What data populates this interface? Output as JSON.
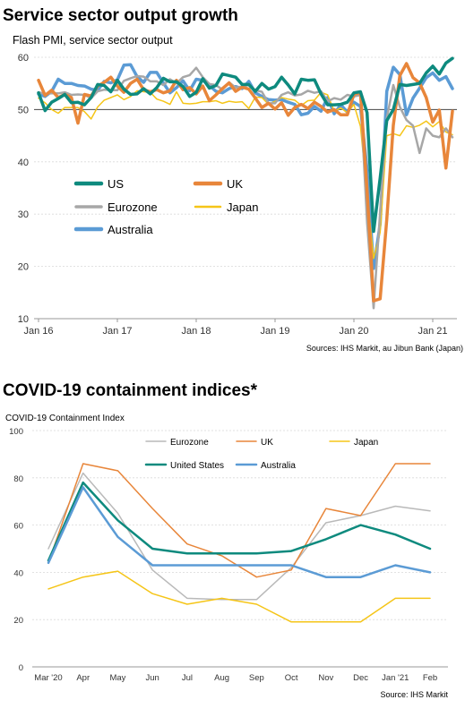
{
  "chart_data": [
    {
      "type": "line",
      "title": "Service sector output growth",
      "subtitle": "Flash PMI, service sector output",
      "source": "Sources: IHS Markit, au Jibun Bank (Japan)",
      "ylim": [
        10,
        60
      ],
      "yticks": [
        "10",
        "20",
        "30",
        "40",
        "50",
        "60"
      ],
      "xticks": [
        "Jan 16",
        "Jan 17",
        "Jan 18",
        "Jan 19",
        "Jan 20",
        "Jan 21"
      ],
      "x_start": "2016-01",
      "reference_line": 50,
      "grid": true,
      "legend_position": "bottom-left",
      "series": [
        {
          "name": "US",
          "color": "#0e8a7e",
          "width": 3.5,
          "values": [
            53.2,
            49.8,
            51.4,
            52.1,
            52.9,
            51.3,
            51.4,
            50.9,
            52.3,
            54.8,
            54.6,
            53.4,
            55.6,
            53.9,
            52.9,
            53.0,
            54.0,
            53.0,
            54.2,
            56.0,
            55.3,
            55.3,
            54.4,
            52.5,
            53.3,
            55.9,
            54.1,
            54.6,
            56.8,
            56.5,
            56.2,
            54.8,
            54.8,
            53.5,
            55.0,
            53.9,
            54.4,
            56.2,
            54.7,
            53.0,
            55.8,
            55.6,
            55.7,
            53.0,
            50.9,
            50.9,
            51.0,
            51.4,
            53.2,
            53.4,
            49.4,
            26.7,
            36.9,
            47.9,
            50.0,
            54.8,
            54.6,
            54.8,
            55.0,
            57.0,
            58.3,
            56.8,
            58.9,
            59.8
          ]
        },
        {
          "name": "UK",
          "color": "#e8863a",
          "width": 3.5,
          "values": [
            55.6,
            52.7,
            53.7,
            52.3,
            52.9,
            52.3,
            47.4,
            52.9,
            52.6,
            54.5,
            55.2,
            56.2,
            54.5,
            53.3,
            55.0,
            55.8,
            53.8,
            53.4,
            53.8,
            53.2,
            53.6,
            55.6,
            53.8,
            54.2,
            53.0,
            54.5,
            51.7,
            52.8,
            54.0,
            55.1,
            53.5,
            54.3,
            53.9,
            52.2,
            50.4,
            51.2,
            50.1,
            51.3,
            48.9,
            50.4,
            51.0,
            50.2,
            51.4,
            50.6,
            49.5,
            50.0,
            49.0,
            49.0,
            52.9,
            53.3,
            34.5,
            13.4,
            13.8,
            29.0,
            47.0,
            56.5,
            58.8,
            56.1,
            55.1,
            52.3,
            47.6,
            49.9,
            38.8,
            49.7
          ]
        },
        {
          "name": "Eurozone",
          "color": "#a7a7a7",
          "width": 2.5,
          "values": [
            53.3,
            53.0,
            53.1,
            53.1,
            53.3,
            52.8,
            52.9,
            52.8,
            52.2,
            53.5,
            53.8,
            53.7,
            53.7,
            55.5,
            56.0,
            56.4,
            56.3,
            55.4,
            55.4,
            54.7,
            55.8,
            55.0,
            56.2,
            56.6,
            58.0,
            56.2,
            54.9,
            54.7,
            53.8,
            55.2,
            54.2,
            54.4,
            54.7,
            53.7,
            53.4,
            51.2,
            51.2,
            52.8,
            53.3,
            52.7,
            52.9,
            53.6,
            53.2,
            53.5,
            51.6,
            52.2,
            51.9,
            52.8,
            52.5,
            52.8,
            28.4,
            12.0,
            30.5,
            48.3,
            54.7,
            50.5,
            48.0,
            46.9,
            41.7,
            46.4,
            45.0,
            44.7,
            46.4,
            44.7
          ]
        },
        {
          "name": "Japan",
          "color": "#f5c518",
          "width": 1.5,
          "values": [
            52.2,
            51.3,
            50.0,
            49.3,
            50.4,
            50.4,
            50.4,
            49.6,
            48.2,
            50.5,
            51.8,
            52.3,
            52.8,
            51.9,
            52.5,
            53.6,
            53.4,
            53.3,
            52.0,
            51.6,
            51.0,
            53.4,
            51.2,
            51.1,
            51.2,
            51.5,
            51.5,
            51.7,
            51.2,
            51.6,
            51.4,
            51.5,
            50.2,
            52.4,
            52.3,
            51.0,
            51.6,
            52.3,
            52.0,
            51.8,
            50.8,
            51.7,
            51.8,
            53.3,
            52.8,
            49.7,
            50.3,
            49.4,
            51.0,
            46.8,
            33.8,
            21.5,
            26.5,
            45.0,
            45.4,
            45.0,
            46.9,
            46.6,
            47.0,
            47.8,
            46.7,
            47.7,
            45.7,
            45.2
          ]
        },
        {
          "name": "Australia",
          "color": "#5b9bd5",
          "width": 3.5,
          "values": [
            53.0,
            52.5,
            53.5,
            55.8,
            55.0,
            55.0,
            54.6,
            54.5,
            53.9,
            53.7,
            55.4,
            55.1,
            55.7,
            58.5,
            58.6,
            56.3,
            55.2,
            57.1,
            57.1,
            55.1,
            53.2,
            54.2,
            55.5,
            53.6,
            55.8,
            55.6,
            54.6,
            53.5,
            53.2,
            54.0,
            54.4,
            54.0,
            55.4,
            53.2,
            52.5,
            51.9,
            51.8,
            51.9,
            51.4,
            51.0,
            49.0,
            49.3,
            50.6,
            49.7,
            52.3,
            49.2,
            50.9,
            49.5,
            51.4,
            50.6,
            38.5,
            19.6,
            28.1,
            53.5,
            58.1,
            56.7,
            49.0,
            52.2,
            54.1,
            56.1,
            57.0,
            55.6,
            56.3,
            54.0
          ]
        }
      ]
    },
    {
      "type": "line",
      "title": "COVID-19 containment indices*",
      "subtitle": "COVID-19 Containment  Index",
      "source": "Source: IHS Markit",
      "ylim": [
        0,
        100
      ],
      "yticks": [
        "0",
        "20",
        "40",
        "60",
        "80",
        "100"
      ],
      "categories": [
        "Mar '20",
        "Apr",
        "May",
        "Jun",
        "Jul",
        "Aug",
        "Sep",
        "Oct",
        "Nov",
        "Dec",
        "Jan '21",
        "Feb"
      ],
      "grid": true,
      "legend_position": "top",
      "series": [
        {
          "name": "Eurozone",
          "color": "#b9b9b9",
          "width": 1.5,
          "values": [
            50,
            82,
            65,
            41,
            29,
            28.5,
            28.5,
            42,
            61,
            64,
            68,
            66
          ]
        },
        {
          "name": "UK",
          "color": "#e8863a",
          "width": 1.5,
          "values": [
            44,
            86,
            83,
            67,
            52,
            47,
            38,
            41,
            67,
            64,
            86,
            86
          ]
        },
        {
          "name": "Japan",
          "color": "#f5c518",
          "width": 1.5,
          "values": [
            33,
            38,
            40.5,
            31,
            26.5,
            29,
            26.5,
            19,
            19,
            19,
            29,
            29
          ]
        },
        {
          "name": "United States",
          "color": "#0e8a7e",
          "width": 2.5,
          "values": [
            45,
            78,
            62,
            50,
            48,
            48,
            48,
            49,
            54,
            60,
            56,
            50
          ]
        },
        {
          "name": "Australia",
          "color": "#5b9bd5",
          "width": 2.5,
          "values": [
            44,
            76,
            55,
            43,
            43,
            43,
            43,
            43,
            38,
            38,
            43,
            40
          ]
        }
      ]
    }
  ]
}
